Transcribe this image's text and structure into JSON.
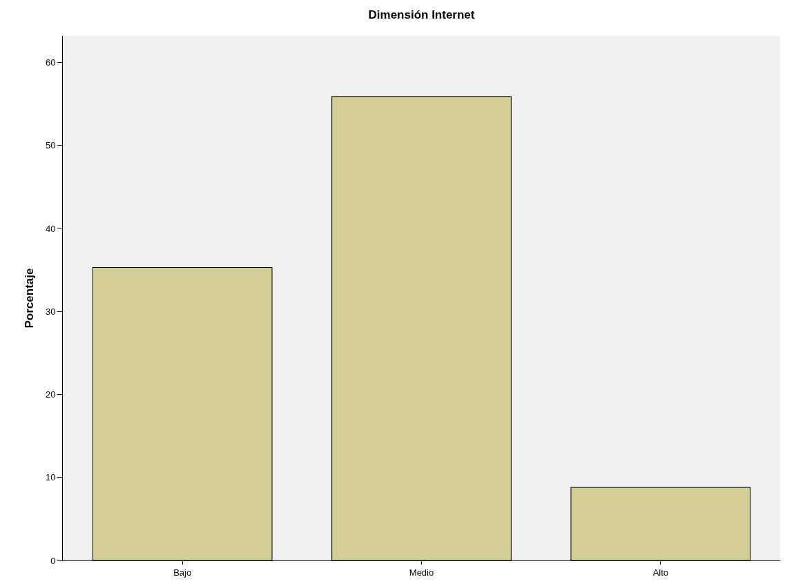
{
  "chart_data": {
    "type": "bar",
    "title": "Dimensión Internet",
    "ylabel": "Porcentaje",
    "categories": [
      "Bajo",
      "Medio",
      "Alto"
    ],
    "values": [
      35.3,
      55.9,
      8.8
    ],
    "color": "#d3ce98",
    "ylim": [
      0,
      63.2
    ],
    "yticks": [
      0,
      10,
      20,
      30,
      40,
      50,
      60
    ],
    "grid": false,
    "legend": false
  }
}
